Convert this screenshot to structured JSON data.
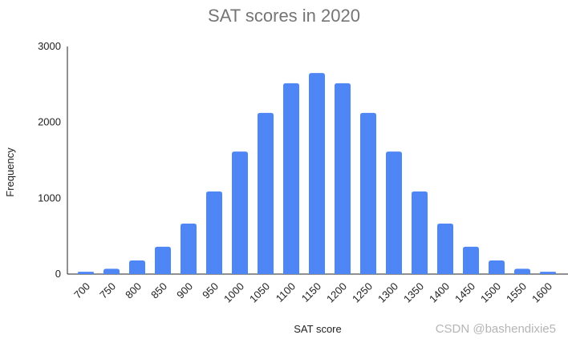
{
  "chart_data": {
    "type": "bar",
    "title": "SAT scores in 2020",
    "x_label": "SAT score",
    "y_label": "Frequency",
    "categories": [
      "700",
      "750",
      "800",
      "850",
      "900",
      "950",
      "1000",
      "1050",
      "1100",
      "1150",
      "1200",
      "1250",
      "1300",
      "1350",
      "1400",
      "1450",
      "1500",
      "1550",
      "1600"
    ],
    "values": [
      30,
      70,
      180,
      360,
      665,
      1090,
      1615,
      2125,
      2515,
      2650,
      2515,
      2125,
      1615,
      1090,
      665,
      360,
      180,
      70,
      30
    ],
    "color": "#4e86f5",
    "ylim": [
      0,
      3000
    ],
    "yticks": [
      0,
      1000,
      2000,
      3000
    ],
    "grid": false,
    "watermark": "CSDN @bashendixie5"
  }
}
